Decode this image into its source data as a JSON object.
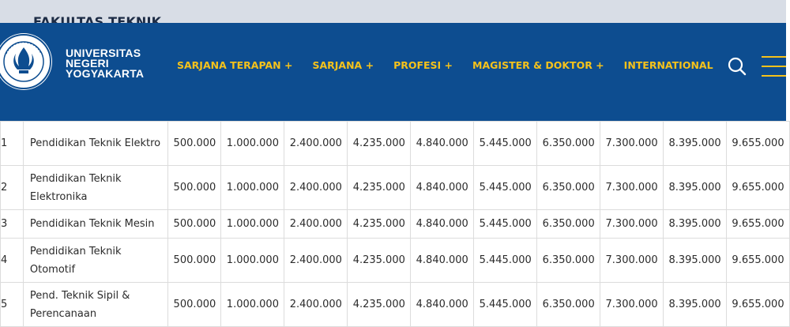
{
  "faculty": {
    "title": "FAKULTAS TEKNIK"
  },
  "header": {
    "brand_lines": [
      "UNIVERSITAS",
      "NEGERI",
      "YOGYAKARTA"
    ],
    "nav": [
      "SARJANA TERAPAN +",
      "SARJANA +",
      "PROFESI +",
      "MAGISTER & DOKTOR +",
      "INTERNATIONAL"
    ],
    "accent_color": "#f5c21b",
    "navbar_color": "#0d4d90",
    "icons": {
      "search": "search-icon",
      "menu": "hamburger-menu-icon",
      "logo": "uny-logo"
    }
  },
  "fee_table": {
    "rows": [
      {
        "no": "1",
        "program": "Pendidikan Teknik Elektro",
        "fees": [
          "500.000",
          "1.000.000",
          "2.400.000",
          "4.235.000",
          "4.840.000",
          "5.445.000",
          "6.350.000",
          "7.300.000",
          "8.395.000",
          "9.655.000"
        ]
      },
      {
        "no": "2",
        "program": "Pendidikan Teknik Elektronika",
        "fees": [
          "500.000",
          "1.000.000",
          "2.400.000",
          "4.235.000",
          "4.840.000",
          "5.445.000",
          "6.350.000",
          "7.300.000",
          "8.395.000",
          "9.655.000"
        ]
      },
      {
        "no": "3",
        "program": "Pendidikan Teknik Mesin",
        "fees": [
          "500.000",
          "1.000.000",
          "2.400.000",
          "4.235.000",
          "4.840.000",
          "5.445.000",
          "6.350.000",
          "7.300.000",
          "8.395.000",
          "9.655.000"
        ]
      },
      {
        "no": "4",
        "program": "Pendidikan Teknik Otomotif",
        "fees": [
          "500.000",
          "1.000.000",
          "2.400.000",
          "4.235.000",
          "4.840.000",
          "5.445.000",
          "6.350.000",
          "7.300.000",
          "8.395.000",
          "9.655.000"
        ]
      },
      {
        "no": "5",
        "program": "Pend. Teknik Sipil & Perencanaan",
        "fees": [
          "500.000",
          "1.000.000",
          "2.400.000",
          "4.235.000",
          "4.840.000",
          "5.445.000",
          "6.350.000",
          "7.300.000",
          "8.395.000",
          "9.655.000"
        ]
      }
    ]
  }
}
